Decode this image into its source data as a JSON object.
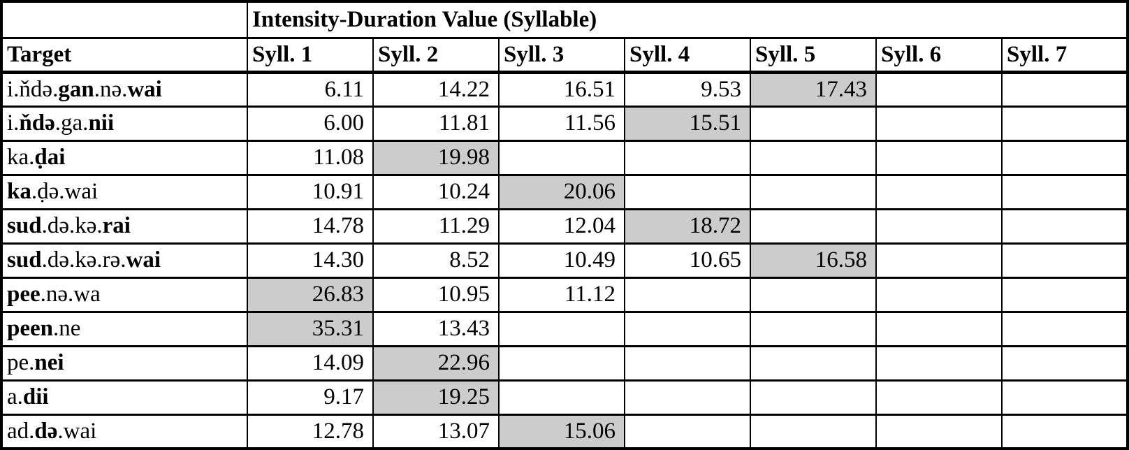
{
  "table": {
    "title": "Intensity-Duration Value (Syllable)",
    "target_header": "Target",
    "syllable_headers": [
      "Syll. 1",
      "Syll. 2",
      "Syll. 3",
      "Syll. 4",
      "Syll. 5",
      "Syll. 6",
      "Syll. 7"
    ],
    "rows": [
      {
        "text": "i.ňdə.gan.nə.wai",
        "target": [
          {
            "text": "i.ňdə.",
            "bold": false
          },
          {
            "text": "gan",
            "bold": true
          },
          {
            "text": ".nə.",
            "bold": false
          },
          {
            "text": "wai",
            "bold": true
          }
        ],
        "values": [
          "6.11",
          "14.22",
          "16.51",
          "9.53",
          "17.43",
          "",
          ""
        ],
        "highlight_index": 4
      },
      {
        "text": "i.ňdə.ga.nii",
        "target": [
          {
            "text": "i.",
            "bold": false
          },
          {
            "text": "ňdə",
            "bold": true
          },
          {
            "text": ".ga.",
            "bold": false
          },
          {
            "text": "nii",
            "bold": true
          }
        ],
        "values": [
          "6.00",
          "11.81",
          "11.56",
          "15.51",
          "",
          "",
          ""
        ],
        "highlight_index": 3
      },
      {
        "text": "ka.ḍai",
        "target": [
          {
            "text": "ka.",
            "bold": false
          },
          {
            "text": "ḍai",
            "bold": true
          }
        ],
        "values": [
          "11.08",
          "19.98",
          "",
          "",
          "",
          "",
          ""
        ],
        "highlight_index": 1
      },
      {
        "text": "ka.ḍə.wai",
        "target": [
          {
            "text": "ka",
            "bold": true
          },
          {
            "text": ".ḍə.wai",
            "bold": false
          }
        ],
        "values": [
          "10.91",
          "10.24",
          "20.06",
          "",
          "",
          "",
          ""
        ],
        "highlight_index": 2
      },
      {
        "text": "sud.də.kə.rai",
        "target": [
          {
            "text": "sud",
            "bold": true
          },
          {
            "text": ".də.kə.",
            "bold": false
          },
          {
            "text": "rai",
            "bold": true
          }
        ],
        "values": [
          "14.78",
          "11.29",
          "12.04",
          "18.72",
          "",
          "",
          ""
        ],
        "highlight_index": 3
      },
      {
        "text": "sud.də.kə.rə.wai",
        "target": [
          {
            "text": "sud",
            "bold": true
          },
          {
            "text": ".də.kə.rə.",
            "bold": false
          },
          {
            "text": "wai",
            "bold": true
          }
        ],
        "values": [
          "14.30",
          "8.52",
          "10.49",
          "10.65",
          "16.58",
          "",
          ""
        ],
        "highlight_index": 4
      },
      {
        "text": "pee.nə.wa",
        "target": [
          {
            "text": "pee",
            "bold": true
          },
          {
            "text": ".nə.wa",
            "bold": false
          }
        ],
        "values": [
          "26.83",
          "10.95",
          "11.12",
          "",
          "",
          "",
          ""
        ],
        "highlight_index": 0
      },
      {
        "text": "peen.ne",
        "target": [
          {
            "text": "peen",
            "bold": true
          },
          {
            "text": ".ne",
            "bold": false
          }
        ],
        "values": [
          "35.31",
          "13.43",
          "",
          "",
          "",
          "",
          ""
        ],
        "highlight_index": 0
      },
      {
        "text": "pe.nei",
        "target": [
          {
            "text": "pe.",
            "bold": false
          },
          {
            "text": "nei",
            "bold": true
          }
        ],
        "values": [
          "14.09",
          "22.96",
          "",
          "",
          "",
          "",
          ""
        ],
        "highlight_index": 1
      },
      {
        "text": "a.dii",
        "target": [
          {
            "text": "a.",
            "bold": false
          },
          {
            "text": "dii",
            "bold": true
          }
        ],
        "values": [
          "9.17",
          "19.25",
          "",
          "",
          "",
          "",
          ""
        ],
        "highlight_index": 1
      },
      {
        "text": "ad.də.wai",
        "target": [
          {
            "text": "ad.",
            "bold": false
          },
          {
            "text": "də",
            "bold": true
          },
          {
            "text": ".wai",
            "bold": false
          }
        ],
        "values": [
          "12.78",
          "13.07",
          "15.06",
          "",
          "",
          "",
          ""
        ],
        "highlight_index": 2
      }
    ]
  },
  "colors": {
    "highlight_fill": "#cccccc",
    "border": "#000000",
    "background": "#ffffff",
    "text": "#000000"
  }
}
